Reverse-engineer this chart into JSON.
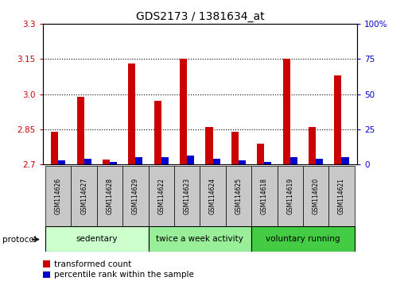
{
  "title": "GDS2173 / 1381634_at",
  "samples": [
    "GSM114626",
    "GSM114627",
    "GSM114628",
    "GSM114629",
    "GSM114622",
    "GSM114623",
    "GSM114624",
    "GSM114625",
    "GSM114618",
    "GSM114619",
    "GSM114620",
    "GSM114621"
  ],
  "transformed_count": [
    2.84,
    2.99,
    2.72,
    3.13,
    2.97,
    3.15,
    2.86,
    2.84,
    2.79,
    3.15,
    2.86,
    3.08
  ],
  "percentile_rank": [
    3,
    4,
    2,
    5,
    5,
    6,
    4,
    3,
    2,
    5,
    4,
    5
  ],
  "ymin": 2.7,
  "ymax": 3.3,
  "yticks": [
    2.7,
    2.85,
    3.0,
    3.15,
    3.3
  ],
  "right_yticks": [
    0,
    25,
    50,
    75,
    100
  ],
  "right_ytick_labels": [
    "0",
    "25",
    "50",
    "75",
    "100%"
  ],
  "bar_color_red": "#cc0000",
  "bar_color_blue": "#0000cc",
  "group_defs": [
    {
      "label": "sedentary",
      "start": 0,
      "end": 3,
      "color": "#ccffcc"
    },
    {
      "label": "twice a week activity",
      "start": 4,
      "end": 7,
      "color": "#99ee99"
    },
    {
      "label": "voluntary running",
      "start": 8,
      "end": 11,
      "color": "#44cc44"
    }
  ],
  "protocol_label": "protocol",
  "bar_width": 0.28,
  "cell_color": "#c8c8c8",
  "tick_label_color_left": "#cc0000",
  "tick_label_color_right": "#0000cc",
  "title_fontsize": 10,
  "tick_fontsize": 7.5,
  "sample_fontsize": 5.5,
  "group_fontsize": 7.5,
  "legend_fontsize": 7.5
}
